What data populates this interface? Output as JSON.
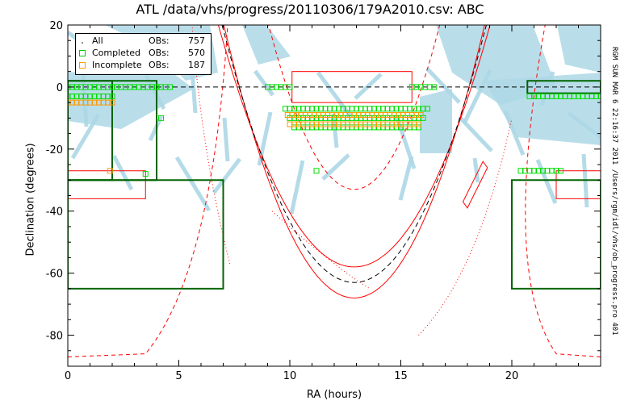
{
  "chart_data": {
    "type": "scatter",
    "title": "ATL  /data/vhs/progress/20110306/179A2010.csv: ABC",
    "xlabel": "RA (hours)",
    "ylabel": "Declination (degrees)",
    "xlim": [
      0,
      24
    ],
    "ylim": [
      -90,
      20
    ],
    "xticks": [
      0,
      5,
      10,
      15,
      20
    ],
    "yticks": [
      20,
      0,
      -20,
      -40,
      -60,
      -80
    ],
    "side_text": "RGM SUN MAR  6 22:16:37 2011 /Users/rgm/idl/vhs/ob_progress.pro 401",
    "legend": {
      "position": "top-left",
      "entries": [
        {
          "name": "All",
          "label": "OBs:",
          "count": "757",
          "symbol": "dot",
          "color": "#000000"
        },
        {
          "name": "Completed",
          "label": "OBs:",
          "count": "570",
          "symbol": "square",
          "color": "#00cc00"
        },
        {
          "name": "Incomplete",
          "label": "OBs:",
          "count": "187",
          "symbol": "square",
          "color": "#ff9900"
        }
      ]
    },
    "colors": {
      "axes": "#000000",
      "survey_boundary": "#006400",
      "region_box": "#ff0000",
      "galactic_plane": "#ff0000",
      "ecliptic": "#000000",
      "milky_way": "#add8e6",
      "completed": "#00dd00",
      "incomplete": "#ff9900"
    },
    "survey_regions": [
      {
        "ra": [
          0,
          4
        ],
        "dec": [
          -30,
          2
        ]
      },
      {
        "ra": [
          0,
          7
        ],
        "dec": [
          -65,
          -30
        ]
      },
      {
        "ra": [
          0,
          2
        ],
        "dec": [
          -30,
          2
        ]
      },
      {
        "ra": [
          20,
          24
        ],
        "dec": [
          -65,
          -30
        ]
      },
      {
        "ra": [
          20.7,
          24
        ],
        "dec": [
          -2,
          2
        ]
      }
    ],
    "red_boxes": [
      {
        "ra": [
          0,
          3.5
        ],
        "dec": [
          -36,
          -27
        ]
      },
      {
        "ra": [
          10.1,
          15.5
        ],
        "dec": [
          -5,
          5
        ]
      },
      {
        "ra": [
          22,
          24
        ],
        "dec": [
          -36,
          -27
        ]
      }
    ],
    "completed_strips": [
      {
        "ra_start": 0.0,
        "ra_end": 4.7,
        "dec": 0
      },
      {
        "ra_start": 0.0,
        "ra_end": 2.0,
        "dec": -3
      },
      {
        "ra_start": 9.0,
        "ra_end": 10.0,
        "dec": 0
      },
      {
        "ra_start": 15.5,
        "ra_end": 16.6,
        "dec": 0
      },
      {
        "ra_start": 20.8,
        "ra_end": 24.0,
        "dec": -3
      },
      {
        "ra_start": 20.4,
        "ra_end": 22.2,
        "dec": -27
      },
      {
        "ra_start": 9.8,
        "ra_end": 16.2,
        "dec": -7
      },
      {
        "ra_start": 10.0,
        "ra_end": 16.0,
        "dec": -10
      },
      {
        "ra_start": 10.2,
        "ra_end": 15.8,
        "dec": -13
      }
    ],
    "incomplete_strips": [
      {
        "ra_start": 0.0,
        "ra_end": 2.0,
        "dec": -5
      },
      {
        "ra_start": 9.9,
        "ra_end": 16.0,
        "dec": -9
      },
      {
        "ra_start": 10.0,
        "ra_end": 15.8,
        "dec": -12
      }
    ],
    "isolated_points": [
      {
        "ra": 1.9,
        "dec": -27,
        "status": "incomplete"
      },
      {
        "ra": 3.5,
        "dec": -28,
        "status": "completed"
      },
      {
        "ra": 4.2,
        "dec": -10,
        "status": "completed"
      },
      {
        "ra": 11.2,
        "dec": -27,
        "status": "completed"
      }
    ]
  }
}
